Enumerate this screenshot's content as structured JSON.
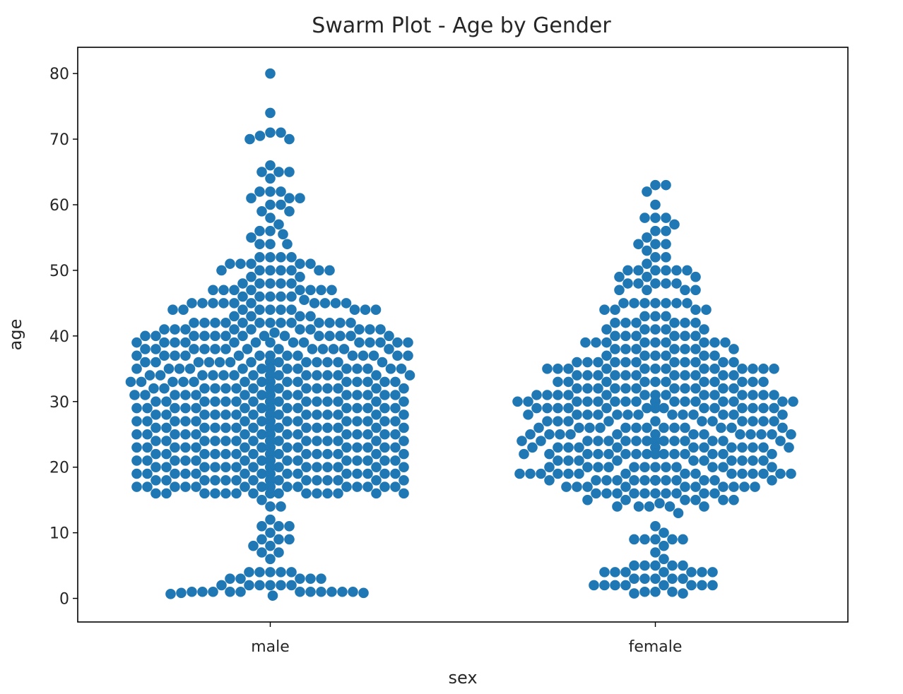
{
  "chart_data": {
    "type": "scatter",
    "subtype": "swarm",
    "title": "Swarm Plot - Age by Gender",
    "xlabel": "sex",
    "ylabel": "age",
    "categories": [
      "male",
      "female"
    ],
    "y_ticks": [
      0,
      10,
      20,
      30,
      40,
      50,
      60,
      70,
      80
    ],
    "ylim": [
      -3.6,
      84
    ],
    "grid": false,
    "color": "#1f77b4",
    "series": [
      {
        "category": "male",
        "values": [
          80,
          74,
          71,
          71,
          70,
          70,
          70.5,
          66,
          65,
          65,
          65,
          64,
          62,
          62,
          62,
          61,
          61,
          61,
          60,
          60,
          59,
          59,
          58,
          57,
          56,
          56,
          55.5,
          55,
          54,
          54,
          54,
          52,
          52,
          52,
          52,
          51,
          51,
          51,
          51,
          51,
          50,
          50,
          50,
          50,
          50,
          50,
          50,
          49,
          49,
          48,
          48,
          48,
          48,
          48,
          47,
          47,
          47,
          47,
          47,
          47,
          47,
          47,
          46,
          46,
          46,
          46,
          46,
          45.5,
          45,
          45,
          45,
          45,
          45,
          45,
          45,
          45,
          45,
          45,
          44,
          44,
          44,
          44,
          44,
          44,
          44,
          44,
          44,
          44,
          43,
          43,
          43,
          43,
          42,
          42,
          42,
          42,
          42,
          42,
          42,
          42,
          42,
          42,
          42,
          42,
          42,
          41,
          41,
          41,
          41,
          41,
          41,
          41,
          41,
          41,
          41,
          40.5,
          40,
          40,
          40,
          40,
          40,
          40,
          40,
          40,
          40,
          40,
          40,
          40,
          40,
          40,
          39,
          39,
          39,
          39,
          39,
          39,
          39,
          39,
          39,
          39,
          39,
          39,
          39,
          39,
          38,
          38,
          38,
          38,
          38,
          38,
          38,
          38,
          38,
          38,
          38,
          38,
          38,
          37,
          37,
          37,
          37,
          37,
          37,
          37,
          37,
          37,
          37,
          37,
          37,
          37,
          37,
          37,
          36,
          36,
          36,
          36,
          36,
          36,
          36,
          36,
          36,
          36,
          36,
          36,
          36,
          36,
          36,
          36,
          36,
          36,
          36,
          36,
          36,
          36,
          35,
          35,
          35,
          35,
          35,
          35,
          35,
          35,
          35,
          35,
          35,
          35,
          35,
          35,
          35,
          35,
          35,
          35,
          35,
          35,
          35,
          35,
          35,
          35,
          35,
          34,
          34,
          34,
          34,
          34,
          34,
          34,
          34,
          34,
          34,
          34,
          34,
          34,
          34,
          34,
          34,
          34,
          34,
          34,
          34,
          34,
          34,
          34,
          33,
          33,
          33,
          33,
          33,
          33,
          33,
          33,
          33,
          33,
          33,
          33,
          33,
          33,
          33,
          33,
          33,
          33,
          33,
          33,
          33,
          33,
          33,
          33,
          32,
          32,
          32,
          32,
          32,
          32,
          32,
          32,
          32,
          32,
          32,
          32,
          32,
          32,
          32,
          32,
          32,
          32,
          32,
          32,
          32,
          32,
          32,
          32,
          32,
          32,
          31,
          31,
          31,
          31,
          31,
          31,
          31,
          31,
          31,
          31,
          31,
          31,
          31,
          31,
          31,
          31,
          31,
          31,
          31,
          31,
          31,
          31,
          31,
          31,
          31,
          31,
          31,
          30,
          30,
          30,
          30,
          30,
          30,
          30,
          30,
          30,
          30,
          30,
          30,
          30,
          30,
          30,
          30,
          30,
          30,
          30,
          30,
          30,
          30,
          30,
          30,
          30,
          30,
          30,
          29,
          29,
          29,
          29,
          29,
          29,
          29,
          29,
          29,
          29,
          29,
          29,
          29,
          29,
          29,
          29,
          29,
          29,
          29,
          29,
          29,
          29,
          29,
          29,
          29,
          29,
          29,
          29,
          29,
          28,
          28,
          28,
          28,
          28,
          28,
          28,
          28,
          28,
          28,
          28,
          28,
          28,
          28,
          28,
          28,
          28,
          28,
          28,
          28,
          28,
          28,
          28,
          28,
          28,
          28,
          28,
          28,
          28,
          28,
          27,
          27,
          27,
          27,
          27,
          27,
          27,
          27,
          27,
          27,
          27,
          27,
          27,
          27,
          27,
          27,
          27,
          27,
          27,
          27,
          27,
          27,
          27,
          27,
          27,
          27,
          27,
          27,
          27,
          26,
          26,
          26,
          26,
          26,
          26,
          26,
          26,
          26,
          26,
          26,
          26,
          26,
          26,
          26,
          26,
          26,
          26,
          26,
          26,
          26,
          26,
          26,
          26,
          26,
          26,
          25,
          25,
          25,
          25,
          25,
          25,
          25,
          25,
          25,
          25,
          25,
          25,
          25,
          25,
          25,
          25,
          25,
          25,
          25,
          25,
          25,
          25,
          25,
          25,
          25,
          25,
          25,
          25,
          25,
          25,
          24,
          24,
          24,
          24,
          24,
          24,
          24,
          24,
          24,
          24,
          24,
          24,
          24,
          24,
          24,
          24,
          24,
          24,
          24,
          24,
          24,
          24,
          24,
          24,
          24,
          24,
          24,
          24,
          24,
          23,
          23,
          23,
          23,
          23,
          23,
          23,
          23,
          23,
          23,
          23,
          23,
          23,
          23,
          23,
          23,
          23,
          23,
          23,
          23,
          23,
          23,
          23,
          23,
          23,
          23,
          23,
          23,
          22,
          22,
          22,
          22,
          22,
          22,
          22,
          22,
          22,
          22,
          22,
          22,
          22,
          22,
          22,
          22,
          22,
          22,
          22,
          22,
          22,
          22,
          22,
          22,
          22,
          22,
          22,
          22,
          22,
          22,
          21,
          21,
          21,
          21,
          21,
          21,
          21,
          21,
          21,
          21,
          21,
          21,
          21,
          21,
          21,
          21,
          21,
          21,
          21,
          21,
          21,
          21,
          21,
          21,
          21,
          21,
          21,
          21,
          21,
          21,
          21,
          20,
          20,
          20,
          20,
          20,
          20,
          20,
          20,
          20,
          20,
          20,
          20,
          20,
          20,
          20,
          20,
          20,
          20,
          20,
          20,
          20,
          20,
          20,
          20,
          20,
          20,
          20,
          20,
          20,
          20,
          20,
          20,
          19,
          19,
          19,
          19,
          19,
          19,
          19,
          19,
          19,
          19,
          19,
          19,
          19,
          19,
          19,
          19,
          19,
          19,
          19,
          19,
          19,
          19,
          19,
          19,
          19,
          19,
          19,
          19,
          19,
          19,
          19,
          19,
          18,
          18,
          18,
          18,
          18,
          18,
          18,
          18,
          18,
          18,
          18,
          18,
          18,
          18,
          18,
          18,
          18,
          18,
          18,
          18,
          18,
          18,
          18,
          18,
          18,
          18,
          18,
          18,
          18,
          18,
          17,
          17,
          17,
          17,
          17,
          17,
          17,
          17,
          17,
          17,
          17,
          17,
          17,
          17,
          17,
          17,
          17,
          17,
          17,
          17,
          17,
          17,
          17,
          17,
          17,
          17,
          17,
          17,
          16,
          16,
          16,
          16,
          16,
          16,
          16,
          16,
          16,
          16,
          16,
          16,
          16,
          16,
          16,
          16,
          16,
          16,
          15,
          14,
          14,
          12,
          11,
          11,
          11,
          10,
          9,
          9,
          9,
          8,
          8,
          7,
          7,
          6,
          4,
          4,
          4,
          4,
          4,
          3,
          3,
          3,
          3,
          3,
          2,
          2,
          2,
          2,
          2,
          2,
          1,
          1,
          1,
          1,
          1,
          1,
          1,
          1,
          1,
          1,
          1,
          0.83,
          0.83,
          0.67,
          0.42
        ]
      },
      {
        "category": "female",
        "values": [
          63,
          63,
          62,
          60,
          58,
          58,
          58,
          57,
          56,
          56,
          55,
          54,
          54,
          54,
          53,
          52,
          52,
          51,
          50,
          50,
          50,
          50,
          50,
          50,
          49,
          49,
          49,
          48,
          48,
          48,
          48,
          48,
          47,
          47,
          47,
          47,
          45,
          45,
          45,
          45,
          45,
          45,
          45,
          44,
          44,
          44,
          44,
          43,
          43,
          43,
          42,
          42,
          42,
          42,
          42,
          42,
          41,
          41,
          41,
          41,
          41,
          40,
          40,
          40,
          40,
          40,
          40,
          39,
          39,
          39,
          39,
          39,
          39,
          39,
          39,
          39,
          38,
          38,
          38,
          38,
          38,
          38,
          38,
          37,
          37,
          37,
          37,
          37,
          37,
          36,
          36,
          36,
          36,
          36,
          36,
          36,
          36,
          36,
          36,
          36,
          35,
          35,
          35,
          35,
          35,
          35,
          35,
          35,
          35,
          35,
          35,
          35,
          35,
          34,
          34,
          34,
          34,
          34,
          34,
          34,
          34,
          34,
          34,
          34,
          33,
          33,
          33,
          33,
          33,
          33,
          33,
          33,
          33,
          33,
          33,
          32,
          32,
          32,
          32,
          32,
          32,
          32,
          32,
          32,
          32,
          32,
          31,
          31,
          31,
          31,
          31,
          31,
          31,
          31,
          31,
          31,
          31,
          31,
          31,
          31,
          30,
          30,
          30,
          30,
          30,
          30,
          30,
          30,
          30,
          30,
          30,
          30,
          30,
          30,
          30,
          30,
          30,
          30,
          30,
          30,
          30,
          29,
          29,
          29,
          29,
          29,
          29,
          29,
          29,
          29,
          29,
          29,
          29,
          29,
          29,
          29,
          29,
          28,
          28,
          28,
          28,
          28,
          28,
          28,
          28,
          28,
          28,
          28,
          28,
          28,
          27,
          27,
          27,
          27,
          27,
          27,
          27,
          27,
          27,
          27,
          27,
          26,
          26,
          26,
          26,
          26,
          26,
          26,
          26,
          26,
          26,
          26,
          26,
          26,
          25,
          25,
          25,
          25,
          25,
          25,
          25,
          25,
          25,
          25,
          25,
          25,
          25,
          24,
          24,
          24,
          24,
          24,
          24,
          24,
          24,
          24,
          24,
          24,
          24,
          24,
          24,
          24,
          24,
          24,
          24,
          24,
          24,
          24,
          24,
          24,
          24,
          24,
          24,
          24,
          23,
          23,
          23,
          23,
          23,
          23,
          23,
          23,
          23,
          23,
          23,
          23,
          23,
          23,
          22,
          22,
          22,
          22,
          22,
          22,
          22,
          22,
          22,
          22,
          22,
          22,
          22,
          22,
          22,
          22,
          22,
          22,
          22,
          22,
          22,
          21,
          21,
          21,
          21,
          21,
          21,
          21,
          21,
          21,
          21,
          20,
          20,
          20,
          20,
          20,
          20,
          20,
          20,
          20,
          20,
          20,
          20,
          19,
          19,
          19,
          19,
          19,
          19,
          19,
          19,
          19,
          19,
          19,
          19,
          19,
          19,
          19,
          18,
          18,
          18,
          18,
          18,
          18,
          18,
          18,
          18,
          18,
          18,
          18,
          18,
          18,
          18,
          18,
          18,
          18,
          18,
          18,
          18,
          18,
          17,
          17,
          17,
          17,
          17,
          17,
          17,
          17,
          17,
          17,
          16,
          16,
          16,
          16,
          16,
          16,
          16,
          16,
          16,
          16,
          15,
          15,
          15,
          15,
          15,
          15,
          14.5,
          14,
          14,
          14,
          14,
          14,
          13,
          11,
          10,
          9,
          9,
          9,
          9,
          9,
          8,
          7,
          6,
          5,
          5,
          5,
          5,
          5,
          4,
          4,
          4,
          4,
          4,
          4,
          4,
          3,
          3,
          3,
          3,
          3,
          2,
          2,
          2,
          2,
          2,
          2,
          2,
          2,
          1,
          1,
          1,
          0.75,
          0.75
        ]
      }
    ]
  }
}
